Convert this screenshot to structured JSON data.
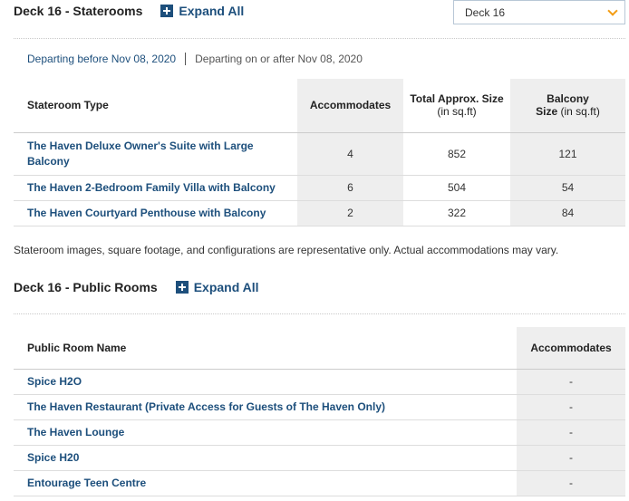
{
  "staterooms": {
    "title": "Deck 16 - Staterooms",
    "expand_label": "Expand All",
    "deck_select": {
      "selected": "Deck 16"
    },
    "tabs": [
      {
        "label": "Departing before Nov 08, 2020",
        "active": true
      },
      {
        "label": "Departing on or after Nov 08, 2020",
        "active": false
      }
    ],
    "columns": {
      "type": "Stateroom Type",
      "accommodates": "Accommodates",
      "size_line1": "Total Approx. Size",
      "size_line2": "(in sq.ft)",
      "balcony_line1": "Balcony",
      "balcony_bold": "Size",
      "balcony_unit": " (in sq.ft)"
    },
    "rows": [
      {
        "name_line1": "The Haven Deluxe Owner's Suite with Large",
        "name_line2": "Balcony",
        "accommodates": "4",
        "size": "852",
        "balcony": "121"
      },
      {
        "name_line1": "The Haven 2-Bedroom Family Villa with Balcony",
        "name_line2": "",
        "accommodates": "6",
        "size": "504",
        "balcony": "54"
      },
      {
        "name_line1": "The Haven Courtyard Penthouse with Balcony",
        "name_line2": "",
        "accommodates": "2",
        "size": "322",
        "balcony": "84"
      }
    ],
    "note": "Stateroom images, square footage, and configurations are representative only. Actual accommodations may vary."
  },
  "public_rooms": {
    "title": "Deck 16 - Public Rooms",
    "expand_label": "Expand All",
    "columns": {
      "name": "Public Room Name",
      "accommodates": "Accommodates"
    },
    "rows": [
      {
        "name": "Spice H2O",
        "accommodates": "-"
      },
      {
        "name": "The Haven Restaurant (Private Access for Guests of The Haven Only)",
        "accommodates": "-"
      },
      {
        "name": "The Haven Lounge",
        "accommodates": "-"
      },
      {
        "name": "Spice H20",
        "accommodates": "-"
      },
      {
        "name": "Entourage Teen Centre",
        "accommodates": "-"
      }
    ]
  },
  "colors": {
    "link": "#1d4f7c",
    "accent_chevron": "#f39c12",
    "shade": "#eeeeee"
  },
  "icons": {
    "expand": "plus-square-icon",
    "select": "chevron-down-icon"
  }
}
